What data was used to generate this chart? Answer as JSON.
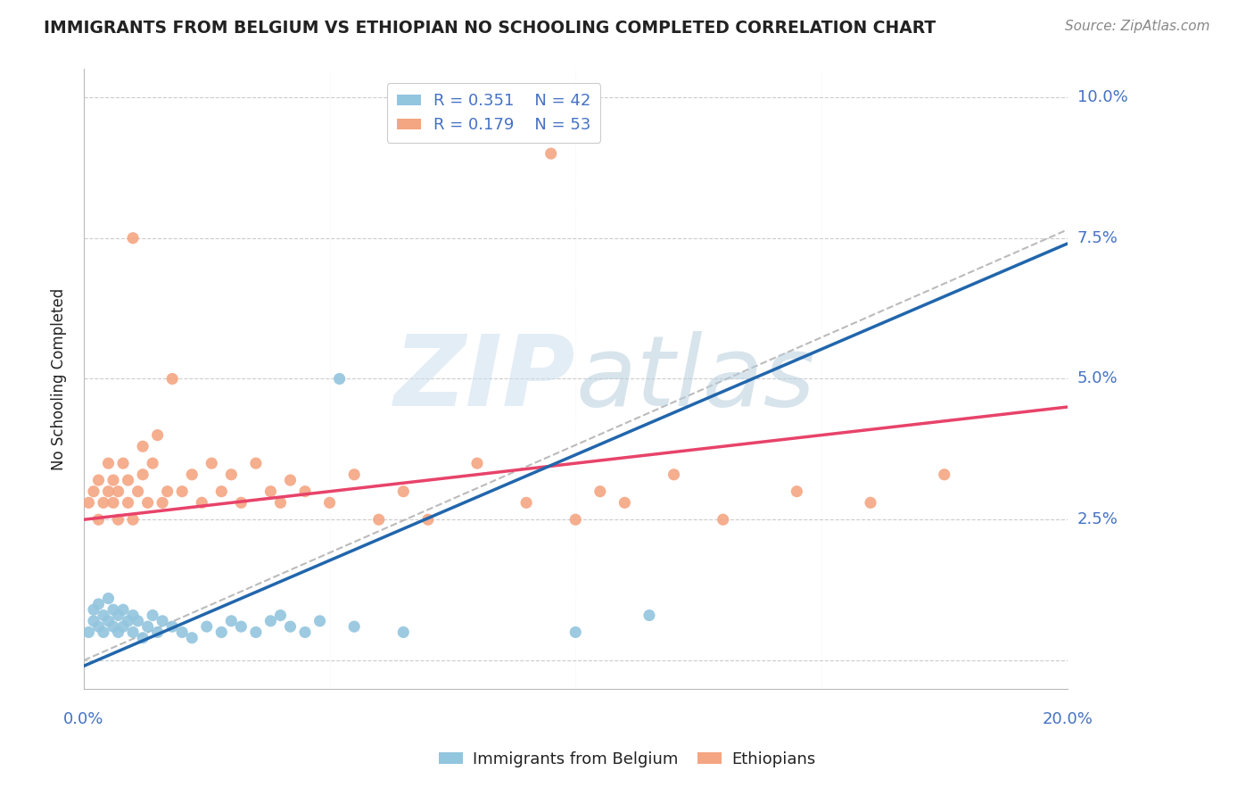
{
  "title": "IMMIGRANTS FROM BELGIUM VS ETHIOPIAN NO SCHOOLING COMPLETED CORRELATION CHART",
  "source": "Source: ZipAtlas.com",
  "ylabel": "No Schooling Completed",
  "xlim": [
    0.0,
    0.2
  ],
  "ylim": [
    -0.005,
    0.105
  ],
  "legend_label_blue": "Immigrants from Belgium",
  "legend_label_pink": "Ethiopians",
  "R_blue": "R = 0.351",
  "N_blue": "N = 42",
  "R_pink": "R = 0.179",
  "N_pink": "N = 53",
  "blue_color": "#92c5de",
  "pink_color": "#f4a582",
  "blue_line_color": "#2166ac",
  "pink_line_color": "#e8436a",
  "dash_line_color": "#aaaaaa",
  "background_color": "#ffffff",
  "grid_color": "#cccccc",
  "title_color": "#222222",
  "tick_color": "#4472c4",
  "blue_x": [
    0.001,
    0.002,
    0.002,
    0.003,
    0.003,
    0.004,
    0.004,
    0.005,
    0.005,
    0.006,
    0.006,
    0.007,
    0.007,
    0.008,
    0.008,
    0.009,
    0.01,
    0.01,
    0.011,
    0.012,
    0.013,
    0.014,
    0.015,
    0.016,
    0.018,
    0.02,
    0.022,
    0.025,
    0.028,
    0.03,
    0.032,
    0.035,
    0.038,
    0.04,
    0.042,
    0.045,
    0.048,
    0.052,
    0.055,
    0.065,
    0.1,
    0.115
  ],
  "blue_y": [
    0.005,
    0.007,
    0.009,
    0.006,
    0.01,
    0.005,
    0.008,
    0.007,
    0.011,
    0.006,
    0.009,
    0.008,
    0.005,
    0.009,
    0.006,
    0.007,
    0.005,
    0.008,
    0.007,
    0.004,
    0.006,
    0.008,
    0.005,
    0.007,
    0.006,
    0.005,
    0.004,
    0.006,
    0.005,
    0.007,
    0.006,
    0.005,
    0.007,
    0.008,
    0.006,
    0.005,
    0.007,
    0.05,
    0.006,
    0.005,
    0.005,
    0.008
  ],
  "pink_x": [
    0.001,
    0.002,
    0.003,
    0.003,
    0.004,
    0.005,
    0.005,
    0.006,
    0.006,
    0.007,
    0.007,
    0.008,
    0.009,
    0.009,
    0.01,
    0.01,
    0.011,
    0.012,
    0.012,
    0.013,
    0.014,
    0.015,
    0.016,
    0.017,
    0.018,
    0.02,
    0.022,
    0.024,
    0.026,
    0.028,
    0.03,
    0.032,
    0.035,
    0.038,
    0.04,
    0.042,
    0.045,
    0.05,
    0.055,
    0.06,
    0.065,
    0.07,
    0.08,
    0.09,
    0.095,
    0.1,
    0.105,
    0.11,
    0.12,
    0.13,
    0.145,
    0.16,
    0.175
  ],
  "pink_y": [
    0.028,
    0.03,
    0.025,
    0.032,
    0.028,
    0.03,
    0.035,
    0.028,
    0.032,
    0.025,
    0.03,
    0.035,
    0.028,
    0.032,
    0.025,
    0.075,
    0.03,
    0.038,
    0.033,
    0.028,
    0.035,
    0.04,
    0.028,
    0.03,
    0.05,
    0.03,
    0.033,
    0.028,
    0.035,
    0.03,
    0.033,
    0.028,
    0.035,
    0.03,
    0.028,
    0.032,
    0.03,
    0.028,
    0.033,
    0.025,
    0.03,
    0.025,
    0.035,
    0.028,
    0.09,
    0.025,
    0.03,
    0.028,
    0.033,
    0.025,
    0.03,
    0.028,
    0.033
  ],
  "ytick_vals": [
    0.0,
    0.025,
    0.05,
    0.075,
    0.1
  ],
  "ytick_labels": [
    "",
    "2.5%",
    "5.0%",
    "7.5%",
    "10.0%"
  ],
  "xtick_vals": [
    0.0,
    0.05,
    0.1,
    0.15,
    0.2
  ],
  "xtick_labels": [
    "0.0%",
    "",
    "",
    "",
    "20.0%"
  ]
}
